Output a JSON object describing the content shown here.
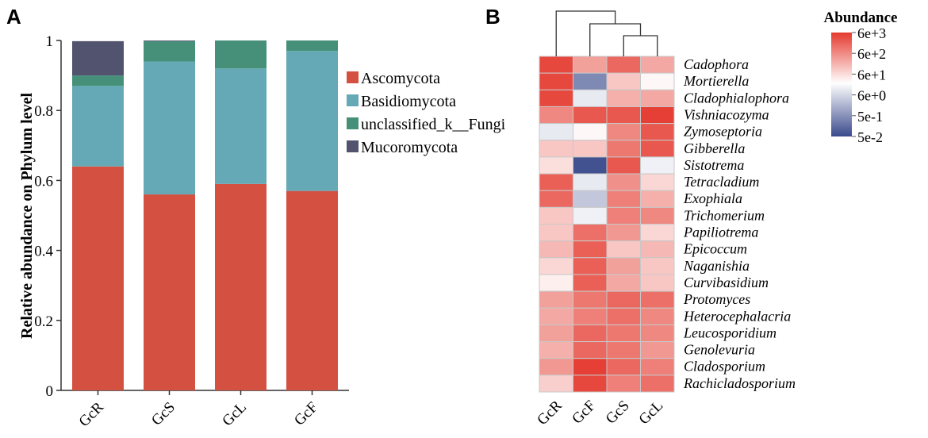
{
  "chart_data": [
    {
      "panel": "A",
      "type": "bar",
      "stacked": true,
      "ylabel": "Relative abundance on Phylum level",
      "ylim": [
        0,
        1
      ],
      "yticks": [
        "0",
        "0.2",
        "0.4",
        "0.6",
        "0.8",
        "1"
      ],
      "categories": [
        "GcR",
        "GcS",
        "GcL",
        "GcF"
      ],
      "legend_position": "right",
      "series": [
        {
          "name": "Ascomycota",
          "color": "#d45142",
          "values": [
            0.64,
            0.56,
            0.59,
            0.57
          ]
        },
        {
          "name": "Basidiomycota",
          "color": "#64a9b5",
          "values": [
            0.23,
            0.38,
            0.33,
            0.4
          ]
        },
        {
          "name": "unclassified_k__Fungi",
          "color": "#46907a",
          "values": [
            0.03,
            0.058,
            0.08,
            0.03
          ]
        },
        {
          "name": "Mucoromycota",
          "color": "#52536e",
          "values": [
            0.098,
            0.002,
            0.0,
            0.0
          ]
        }
      ]
    },
    {
      "panel": "B",
      "type": "heatmap",
      "legend_title": "Abundance",
      "legend_ticks": [
        "6e+3",
        "6e+2",
        "6e+1",
        "6e+0",
        "5e-1",
        "5e-2"
      ],
      "columns": [
        "GcR",
        "GcF",
        "GcS",
        "GcL"
      ],
      "rows": [
        "Cadophora",
        "Mortierella",
        "Cladophialophora",
        "Vishniacozyma",
        "Zymoseptoria",
        "Gibberella",
        "Sistotrema",
        "Tetracladium",
        "Exophiala",
        "Trichomerium",
        "Papiliotrema",
        "Epicoccum",
        "Naganishia",
        "Curvibasidium",
        "Protomyces",
        "Heterocephalacria",
        "Leucosporidium",
        "Genolevuria",
        "Cladosporium",
        "Rachicladosporium"
      ],
      "log10_values": [
        [
          3.6,
          2.5,
          3.2,
          2.4
        ],
        [
          3.6,
          -0.4,
          2.0,
          1.4
        ],
        [
          3.6,
          1.0,
          2.3,
          2.4
        ],
        [
          2.8,
          3.4,
          3.4,
          3.7
        ],
        [
          1.0,
          1.4,
          2.8,
          3.4
        ],
        [
          2.0,
          2.0,
          3.0,
          3.4
        ],
        [
          1.7,
          -1.2,
          3.4,
          1.1
        ],
        [
          3.3,
          1.0,
          2.7,
          1.8
        ],
        [
          3.2,
          0.5,
          2.9,
          2.3
        ],
        [
          2.0,
          1.1,
          2.9,
          2.8
        ],
        [
          2.0,
          3.1,
          2.6,
          1.8
        ],
        [
          2.2,
          3.3,
          2.0,
          2.2
        ],
        [
          1.8,
          3.3,
          2.5,
          2.0
        ],
        [
          1.5,
          3.3,
          2.4,
          2.0
        ],
        [
          2.5,
          3.0,
          3.2,
          3.1
        ],
        [
          2.4,
          2.9,
          3.1,
          2.8
        ],
        [
          2.5,
          3.2,
          3.0,
          2.8
        ],
        [
          2.3,
          3.2,
          3.0,
          2.6
        ],
        [
          2.6,
          3.7,
          3.2,
          2.9
        ],
        [
          1.9,
          3.6,
          2.9,
          3.1
        ]
      ],
      "color_range": {
        "low": "#3a4a8c",
        "mid": "#ffffff",
        "high": "#e53a2f",
        "low_log10": -1.3,
        "mid_log10": 1.3,
        "high_log10": 3.78
      }
    }
  ],
  "panel_labels": [
    "A",
    "B"
  ]
}
